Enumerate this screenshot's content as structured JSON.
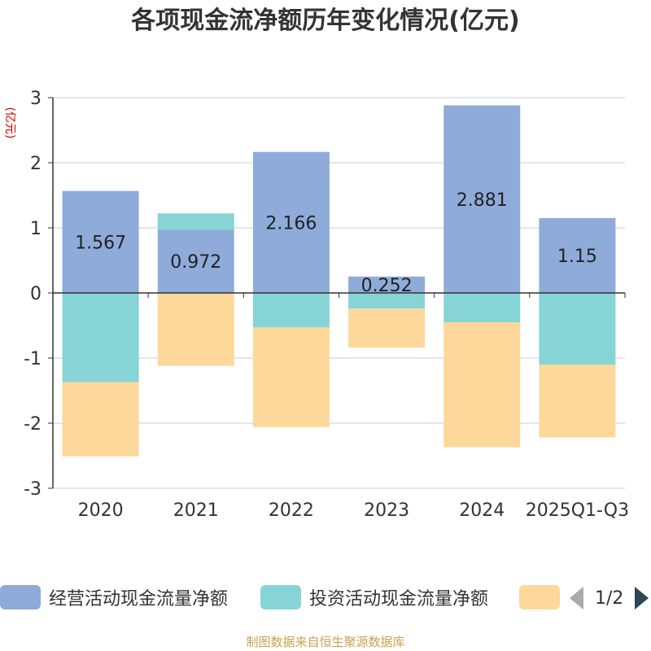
{
  "title": "各项现金流净额历年变化情况(亿元)",
  "source": "制图数据来自恒生聚源数据库",
  "legend": {
    "items": [
      {
        "label": "经营活动现金流量净额",
        "color": "#8eabd9"
      },
      {
        "label": "投资活动现金流量净额",
        "color": "#86d4d6"
      },
      {
        "label": "",
        "color": "#fdd89a"
      }
    ],
    "page": "1/2"
  },
  "chart_data": {
    "type": "bar",
    "stacked": true,
    "title": "各项现金流净额历年变化情况(亿元)",
    "ylabel": "(亿元)",
    "ylim": [
      -3,
      3
    ],
    "yticks": [
      3,
      2,
      1,
      0,
      -1,
      -2,
      -3
    ],
    "categories": [
      "2020",
      "2021",
      "2022",
      "2023",
      "2024",
      "2025Q1-Q3"
    ],
    "series": [
      {
        "name": "经营活动现金流量净额",
        "color": "#8eabd9",
        "values": [
          1.567,
          0.972,
          2.166,
          0.252,
          2.881,
          1.15
        ],
        "labels_shown": true
      },
      {
        "name": "投资活动现金流量净额",
        "color": "#86d4d6",
        "values": [
          -1.37,
          0.25,
          -0.53,
          -0.24,
          -0.45,
          -1.1
        ]
      },
      {
        "name": "",
        "color": "#fdd89a",
        "values": [
          -1.14,
          -1.12,
          -1.53,
          -0.6,
          -1.92,
          -1.12
        ]
      }
    ]
  }
}
